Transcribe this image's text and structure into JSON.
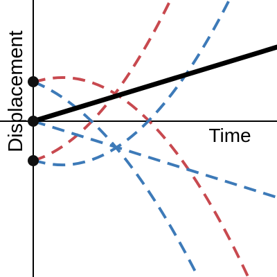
{
  "axes": {
    "x_label": "Time",
    "y_label": "Displacement"
  }
}
